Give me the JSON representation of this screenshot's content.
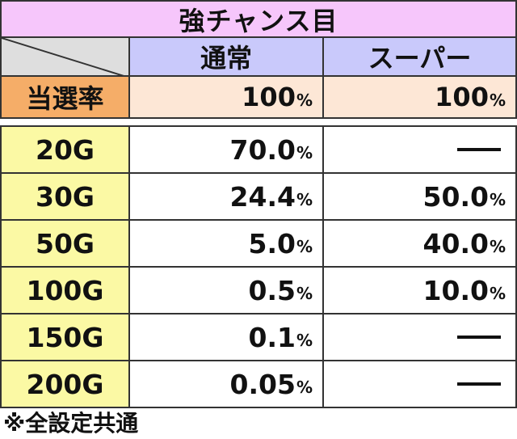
{
  "title": "強チャンス目",
  "columns": [
    "通常",
    "スーパー"
  ],
  "rate": {
    "label": "当選率",
    "values": [
      "100",
      "100"
    ]
  },
  "unit": "%",
  "rows": [
    {
      "label": "20G",
      "values": [
        "70.0",
        null
      ]
    },
    {
      "label": "30G",
      "values": [
        "24.4",
        "50.0"
      ]
    },
    {
      "label": "50G",
      "values": [
        "5.0",
        "40.0"
      ]
    },
    {
      "label": "100G",
      "values": [
        "0.5",
        "10.0"
      ]
    },
    {
      "label": "150G",
      "values": [
        "0.1",
        null
      ]
    },
    {
      "label": "200G",
      "values": [
        "0.05",
        null
      ]
    }
  ],
  "note": "※全設定共通",
  "colors": {
    "title_bg": "#f6c6fb",
    "colhead_bg": "#c9c9fb",
    "rate_label_bg": "#f5ad68",
    "rate_value_bg": "#fde7d6",
    "row_label_bg": "#fbf9a4",
    "corner_bg": "#dedede"
  }
}
